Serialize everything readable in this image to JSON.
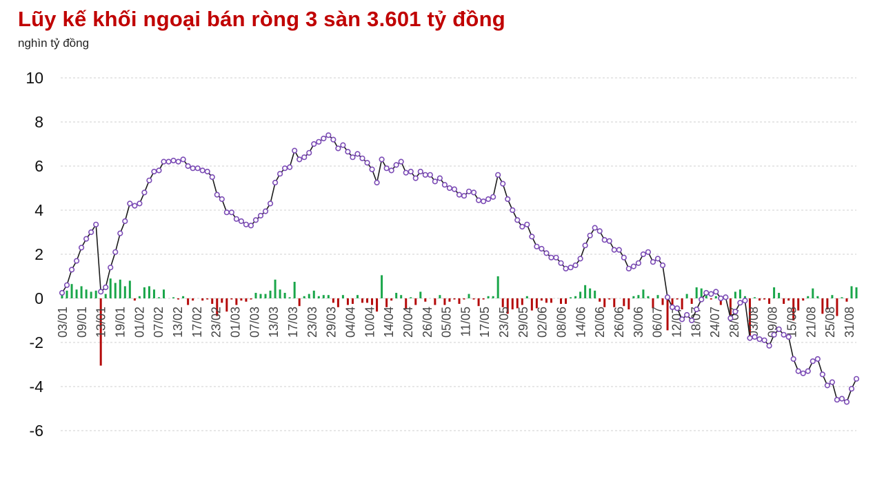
{
  "title": "Lũy kế khối ngoại bán ròng 3 sàn 3.601 tỷ đồng",
  "subtitle": "nghìn tỷ đồng",
  "colors": {
    "line": "#1a1a1a",
    "marker_fill": "#ffffff",
    "marker_stroke": "#7b4bb5",
    "bar_positive": "#1aa64a",
    "bar_negative": "#b40a0a",
    "grid": "#cfcfcf",
    "title": "#c00000"
  },
  "chart_data": {
    "type": "line",
    "title": "Lũy kế khối ngoại bán ròng 3 sàn 3.601 tỷ đồng",
    "ylabel": "nghìn tỷ đồng",
    "ylim": [
      -6,
      10
    ],
    "yticks": [
      10,
      8,
      6,
      4,
      2,
      0,
      -2,
      -4,
      -6
    ],
    "grid": true,
    "x_tick_labels": [
      "03/01",
      "09/01",
      "13/01",
      "19/01",
      "01/02",
      "07/02",
      "13/02",
      "17/02",
      "23/02",
      "01/03",
      "07/03",
      "13/03",
      "17/03",
      "23/03",
      "29/03",
      "04/04",
      "10/04",
      "14/04",
      "20/04",
      "26/04",
      "05/05",
      "11/05",
      "17/05",
      "23/05",
      "29/05",
      "02/06",
      "08/06",
      "14/06",
      "20/06",
      "26/06",
      "30/06",
      "06/07",
      "12/07",
      "18/07",
      "24/07",
      "28/07",
      "03/08",
      "09/08",
      "15/08",
      "21/08",
      "25/08",
      "31/08"
    ],
    "series": [
      {
        "type": "line",
        "values": [
          0.25,
          0.6,
          1.3,
          1.7,
          2.3,
          2.7,
          3.0,
          3.35,
          0.3,
          0.5,
          1.4,
          2.1,
          2.95,
          3.5,
          4.3,
          4.2,
          4.3,
          4.8,
          5.35,
          5.75,
          5.8,
          6.2,
          6.2,
          6.25,
          6.2,
          6.3,
          6.0,
          5.9,
          5.9,
          5.8,
          5.75,
          5.5,
          4.7,
          4.5,
          3.9,
          3.9,
          3.6,
          3.5,
          3.35,
          3.3,
          3.55,
          3.75,
          3.95,
          4.3,
          5.25,
          5.65,
          5.9,
          5.95,
          6.7,
          6.3,
          6.4,
          6.6,
          7.0,
          7.1,
          7.25,
          7.4,
          7.2,
          6.8,
          6.95,
          6.65,
          6.4,
          6.55,
          6.35,
          6.15,
          5.85,
          5.25,
          6.3,
          5.9,
          5.8,
          6.05,
          6.2,
          5.7,
          5.75,
          5.45,
          5.75,
          5.6,
          5.6,
          5.3,
          5.45,
          5.15,
          5.0,
          4.95,
          4.7,
          4.65,
          4.85,
          4.8,
          4.45,
          4.4,
          4.5,
          4.6,
          5.6,
          5.2,
          4.5,
          4.0,
          3.55,
          3.25,
          3.35,
          2.8,
          2.35,
          2.25,
          2.05,
          1.85,
          1.85,
          1.6,
          1.35,
          1.4,
          1.5,
          1.8,
          2.4,
          2.85,
          3.2,
          3.05,
          2.65,
          2.6,
          2.2,
          2.2,
          1.85,
          1.35,
          1.45,
          1.6,
          2.0,
          2.1,
          1.65,
          1.8,
          1.5,
          0.05,
          -0.4,
          -0.45,
          -0.95,
          -0.75,
          -1.0,
          -0.5,
          -0.05,
          0.25,
          0.2,
          0.3,
          0.0,
          0.05,
          -0.9,
          -0.6,
          -0.2,
          -0.1,
          -1.8,
          -1.75,
          -1.85,
          -1.9,
          -2.15,
          -1.65,
          -1.4,
          -1.65,
          -1.75,
          -2.75,
          -3.3,
          -3.4,
          -3.3,
          -2.85,
          -2.75,
          -3.45,
          -3.95,
          -3.8,
          -4.6,
          -4.55,
          -4.7,
          -4.1,
          -3.65
        ]
      },
      {
        "type": "bar",
        "values": [
          0.25,
          0.35,
          0.65,
          0.4,
          0.55,
          0.4,
          0.3,
          0.35,
          -3.05,
          0.2,
          0.9,
          0.7,
          0.85,
          0.55,
          0.8,
          -0.1,
          0.1,
          0.5,
          0.55,
          0.4,
          0.05,
          0.4,
          0.0,
          0.05,
          -0.05,
          0.1,
          -0.3,
          -0.1,
          0.0,
          -0.1,
          -0.05,
          -0.25,
          -0.8,
          -0.2,
          -0.6,
          -0.05,
          -0.3,
          -0.1,
          -0.15,
          -0.05,
          0.25,
          0.2,
          0.2,
          0.35,
          0.85,
          0.4,
          0.25,
          0.05,
          0.75,
          -0.35,
          0.1,
          0.2,
          0.35,
          0.1,
          0.15,
          0.15,
          -0.2,
          -0.4,
          0.15,
          -0.3,
          -0.25,
          0.15,
          -0.2,
          -0.2,
          -0.3,
          -0.6,
          1.05,
          -0.4,
          -0.1,
          0.25,
          0.15,
          -0.5,
          0.05,
          -0.3,
          0.3,
          -0.15,
          0.0,
          -0.3,
          0.15,
          -0.3,
          -0.15,
          -0.05,
          -0.25,
          -0.05,
          0.2,
          -0.05,
          -0.35,
          -0.05,
          0.1,
          0.1,
          1.0,
          -0.4,
          -0.7,
          -0.5,
          -0.45,
          -0.3,
          0.1,
          -0.55,
          -0.45,
          -0.1,
          -0.2,
          -0.2,
          0.0,
          -0.25,
          -0.25,
          0.05,
          0.1,
          0.3,
          0.6,
          0.45,
          0.35,
          -0.15,
          -0.4,
          -0.05,
          -0.4,
          0.0,
          -0.35,
          -0.5,
          0.1,
          0.15,
          0.4,
          0.1,
          -0.45,
          0.15,
          -0.3,
          -1.45,
          -0.45,
          -0.05,
          -0.5,
          0.2,
          -0.25,
          0.5,
          0.45,
          0.3,
          -0.05,
          0.1,
          -0.3,
          0.05,
          -0.9,
          0.3,
          0.4,
          0.1,
          -1.7,
          0.05,
          -0.1,
          -0.05,
          -0.25,
          0.5,
          0.25,
          -0.25,
          -0.1,
          -1.0,
          -0.55,
          -0.1,
          0.1,
          0.45,
          0.1,
          -0.7,
          -0.5,
          0.15,
          -0.8,
          0.05,
          -0.15,
          0.55,
          0.5
        ]
      }
    ]
  }
}
